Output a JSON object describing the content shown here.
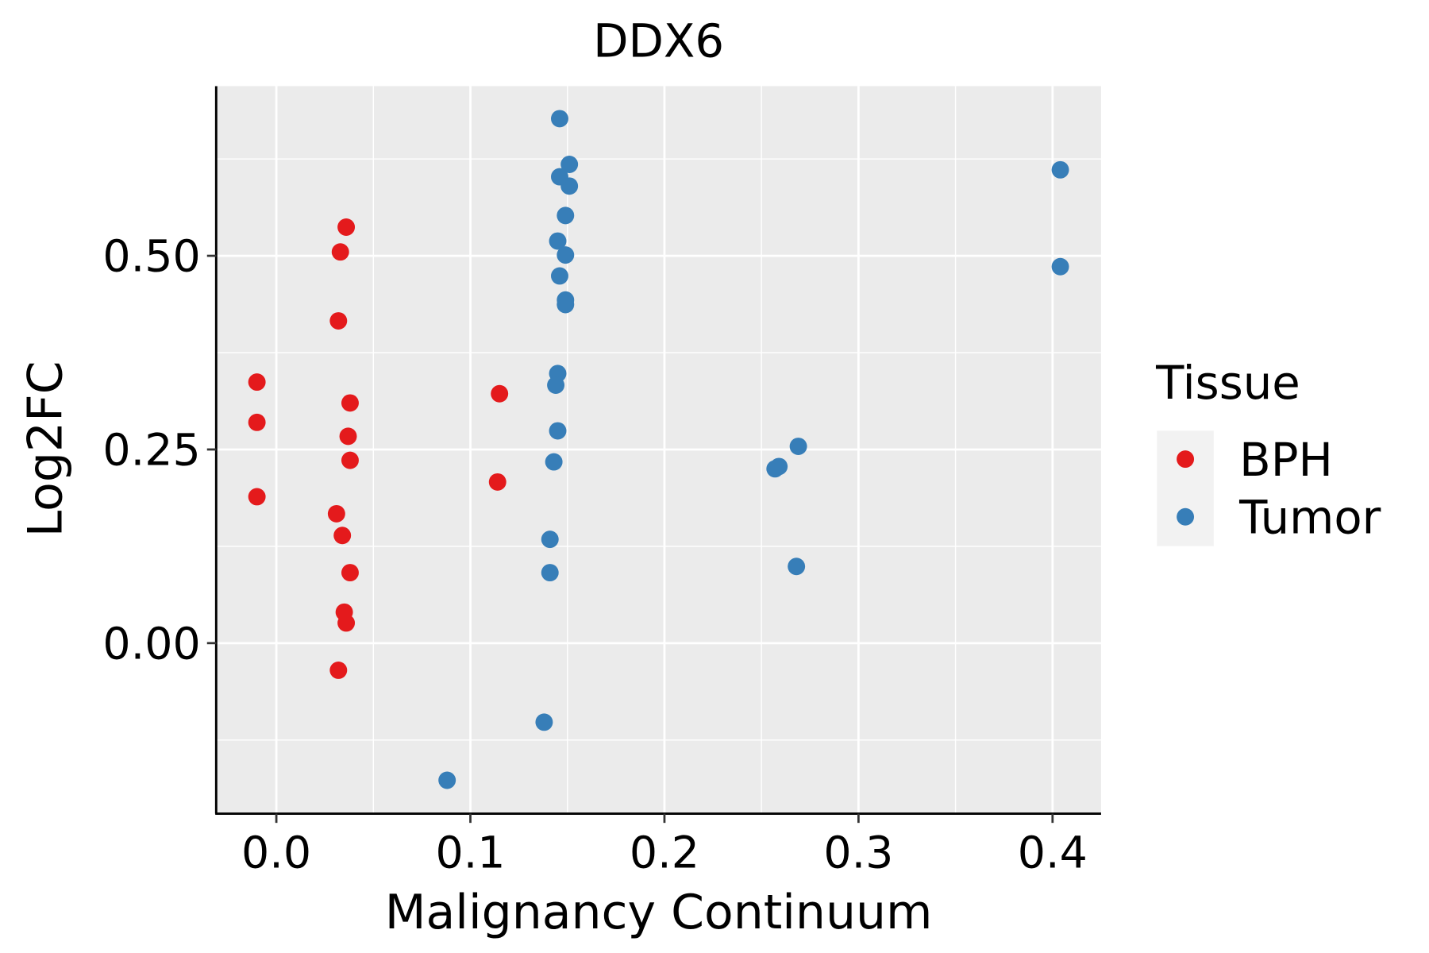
{
  "chart_data": {
    "type": "scatter",
    "title": "DDX6",
    "xlabel": "Malignancy Continuum",
    "ylabel": "Log2FC",
    "xlim": [
      -0.031,
      0.425
    ],
    "ylim": [
      -0.219,
      0.719
    ],
    "xticks": [
      0.0,
      0.1,
      0.2,
      0.3,
      0.4
    ],
    "xtick_labels": [
      "0.0",
      "0.1",
      "0.2",
      "0.3",
      "0.4"
    ],
    "yticks": [
      0.0,
      0.25,
      0.5
    ],
    "ytick_labels": [
      "0.00",
      "0.25",
      "0.50"
    ],
    "grid": true,
    "legend": {
      "title": "Tissue",
      "placement": "right"
    },
    "series": [
      {
        "name": "BPH",
        "color": "#e41a1c",
        "points": [
          [
            0.036,
            0.537
          ],
          [
            0.033,
            0.505
          ],
          [
            0.032,
            0.416
          ],
          [
            -0.01,
            0.337
          ],
          [
            -0.01,
            0.285
          ],
          [
            0.038,
            0.31
          ],
          [
            0.037,
            0.267
          ],
          [
            0.038,
            0.236
          ],
          [
            -0.01,
            0.189
          ],
          [
            0.031,
            0.167
          ],
          [
            0.034,
            0.139
          ],
          [
            0.038,
            0.091
          ],
          [
            0.035,
            0.04
          ],
          [
            0.036,
            0.026
          ],
          [
            0.032,
            -0.035
          ],
          [
            0.115,
            0.322
          ],
          [
            0.114,
            0.208
          ]
        ]
      },
      {
        "name": "Tumor",
        "color": "#377eb8",
        "points": [
          [
            0.146,
            0.677
          ],
          [
            0.151,
            0.618
          ],
          [
            0.146,
            0.602
          ],
          [
            0.151,
            0.59
          ],
          [
            0.149,
            0.552
          ],
          [
            0.145,
            0.519
          ],
          [
            0.149,
            0.501
          ],
          [
            0.146,
            0.474
          ],
          [
            0.149,
            0.443
          ],
          [
            0.149,
            0.437
          ],
          [
            0.145,
            0.348
          ],
          [
            0.144,
            0.333
          ],
          [
            0.145,
            0.274
          ],
          [
            0.143,
            0.234
          ],
          [
            0.141,
            0.134
          ],
          [
            0.141,
            0.091
          ],
          [
            0.138,
            -0.102
          ],
          [
            0.088,
            -0.177
          ],
          [
            0.404,
            0.611
          ],
          [
            0.404,
            0.486
          ],
          [
            0.269,
            0.254
          ],
          [
            0.259,
            0.228
          ],
          [
            0.257,
            0.225
          ],
          [
            0.268,
            0.099
          ]
        ]
      }
    ]
  }
}
